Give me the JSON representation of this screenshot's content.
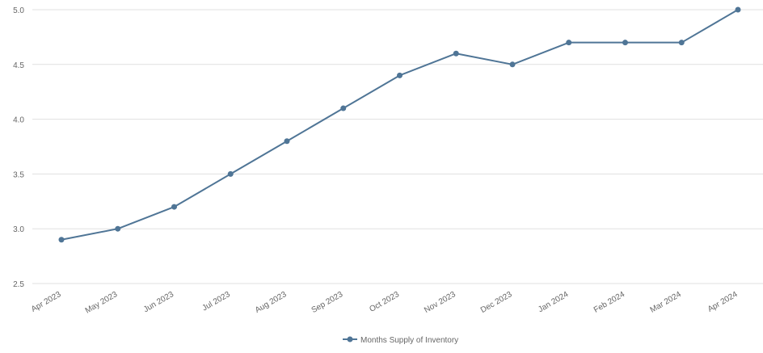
{
  "chart_data": {
    "type": "line",
    "categories": [
      "Apr 2023",
      "May 2023",
      "Jun 2023",
      "Jul 2023",
      "Aug 2023",
      "Sep 2023",
      "Oct 2023",
      "Nov 2023",
      "Dec 2023",
      "Jan 2024",
      "Feb 2024",
      "Mar 2024",
      "Apr 2024"
    ],
    "series": [
      {
        "name": "Months Supply of Inventory",
        "values": [
          2.9,
          3.0,
          3.2,
          3.5,
          3.8,
          4.1,
          4.4,
          4.6,
          4.5,
          4.7,
          4.7,
          4.7,
          5.0
        ],
        "color": "#4f7596"
      }
    ],
    "y_ticks": [
      "2.5",
      "3.0",
      "3.5",
      "4.0",
      "4.5",
      "5.0"
    ],
    "ylim": [
      2.5,
      5.0
    ],
    "grid": true,
    "legend_position": "bottom-center",
    "title": "",
    "xlabel": "",
    "ylabel": ""
  }
}
